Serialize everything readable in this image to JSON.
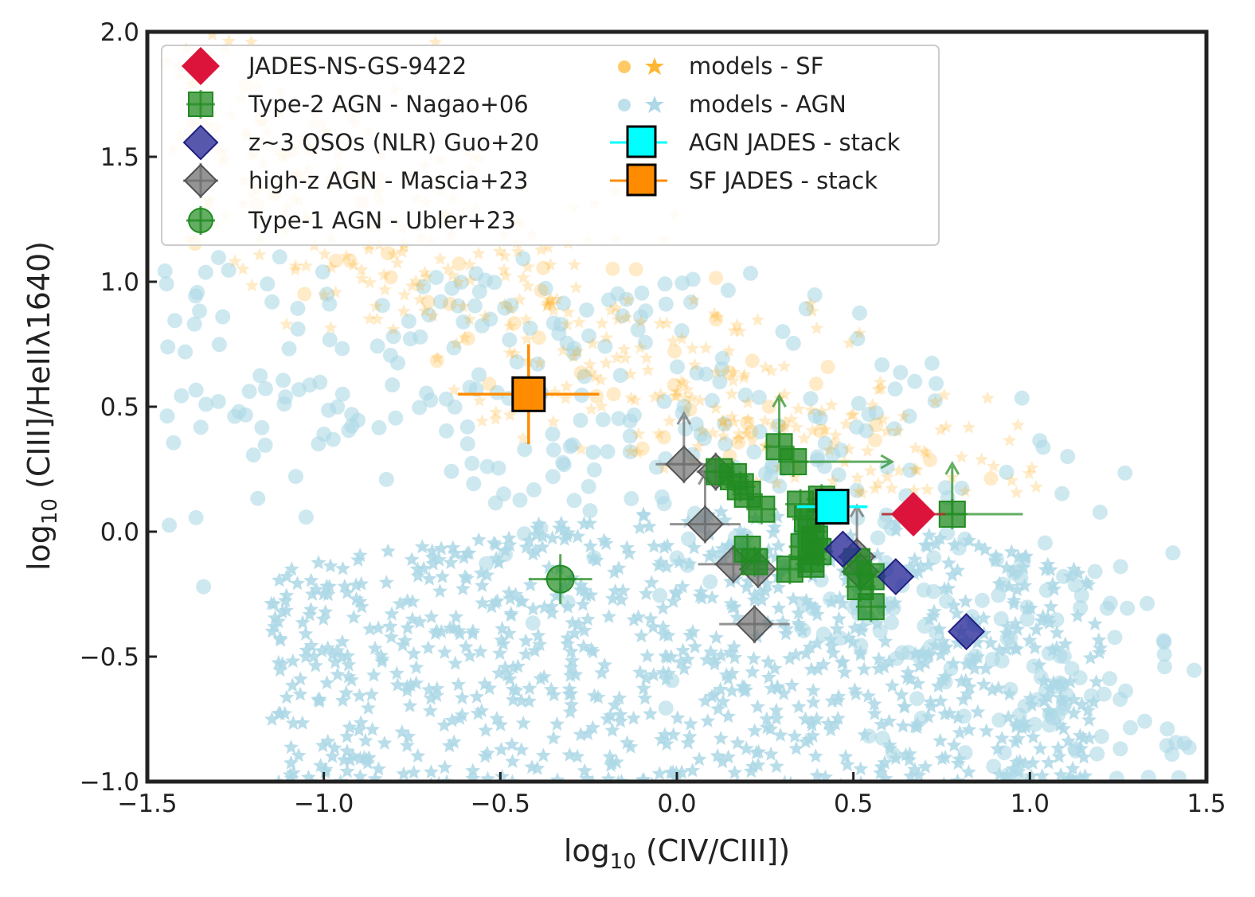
{
  "chart_data": {
    "type": "scatter",
    "xlabel_prefix": "log",
    "xlabel_sub": "10",
    "xlabel_rest": " (CIV/CIII])",
    "ylabel_prefix": "log",
    "ylabel_sub": "10",
    "ylabel_rest": " (CIII]/HeIIλ1640)",
    "xlim": [
      -1.5,
      1.5
    ],
    "ylim": [
      -1.0,
      2.0
    ],
    "xticks": [
      -1.5,
      -1.0,
      -0.5,
      0.0,
      0.5,
      1.0,
      1.5
    ],
    "xtick_labels": [
      "−1.5",
      "−1.0",
      "−0.5",
      "0.0",
      "0.5",
      "1.0",
      "1.5"
    ],
    "yticks": [
      -1.0,
      -0.5,
      0.0,
      0.5,
      1.0,
      1.5,
      2.0
    ],
    "ytick_labels": [
      "−1.0",
      "−0.5",
      "0.0",
      "0.5",
      "1.0",
      "1.5",
      "2.0"
    ],
    "legend_position": "top-left",
    "colors": {
      "red": "#dc143c",
      "green": "#228b22",
      "blue": "#2e2e9a",
      "gray": "#707070",
      "cyan": "#00ffff",
      "orange": "#ff8c00",
      "sf_models": "#ffa500",
      "agn_models": "#add8e6"
    },
    "legend": [
      {
        "label": "JADES-NS-GS-9422",
        "marker": "diamond",
        "color": "#dc143c"
      },
      {
        "label": "Type-2 AGN - Nagao+06",
        "marker": "square",
        "color": "#228b22"
      },
      {
        "label": "z~3 QSOs (NLR) Guo+20",
        "marker": "diamond",
        "color": "#2e2e9a"
      },
      {
        "label": "high-z AGN - Mascia+23",
        "marker": "diamond",
        "color": "#707070"
      },
      {
        "label": "Type-1 AGN - Ubler+23",
        "marker": "circle",
        "color": "#228b22"
      },
      {
        "label": "models - SF",
        "marker": "circle-star",
        "color": "#ffa500"
      },
      {
        "label": "models - AGN",
        "marker": "circle-star",
        "color": "#add8e6"
      },
      {
        "label": "AGN JADES - stack",
        "marker": "square-err",
        "color": "#00ffff"
      },
      {
        "label": "SF JADES - stack",
        "marker": "square-err",
        "color": "#ff8c00"
      }
    ],
    "series": [
      {
        "name": "JADES-NS-GS-9422",
        "points": [
          {
            "x": 0.67,
            "y": 0.07,
            "xerr": 0.09
          }
        ]
      },
      {
        "name": "Type-2 AGN - Nagao+06",
        "points": [
          {
            "x": 0.29,
            "y": 0.34,
            "uy": true
          },
          {
            "x": 0.33,
            "y": 0.28,
            "ux": true
          },
          {
            "x": 0.78,
            "y": 0.07,
            "uy": true,
            "xerr": 0.2
          },
          {
            "x": 0.12,
            "y": 0.24
          },
          {
            "x": 0.16,
            "y": 0.22
          },
          {
            "x": 0.18,
            "y": 0.18
          },
          {
            "x": 0.2,
            "y": 0.15
          },
          {
            "x": 0.24,
            "y": 0.09
          },
          {
            "x": 0.35,
            "y": 0.11
          },
          {
            "x": 0.37,
            "y": 0.05
          },
          {
            "x": 0.38,
            "y": 0.0
          },
          {
            "x": 0.39,
            "y": -0.03
          },
          {
            "x": 0.36,
            "y": -0.06
          },
          {
            "x": 0.4,
            "y": -0.08
          },
          {
            "x": 0.38,
            "y": -0.11
          },
          {
            "x": 0.41,
            "y": 0.13
          },
          {
            "x": 0.2,
            "y": -0.07
          },
          {
            "x": 0.22,
            "y": -0.12
          },
          {
            "x": 0.32,
            "y": -0.15
          },
          {
            "x": 0.38,
            "y": -0.13
          },
          {
            "x": 0.51,
            "y": -0.12
          },
          {
            "x": 0.55,
            "y": -0.18
          },
          {
            "x": 0.52,
            "y": -0.22
          },
          {
            "x": 0.55,
            "y": -0.3
          }
        ]
      },
      {
        "name": "z~3 QSOs (NLR) Guo+20",
        "points": [
          {
            "x": 0.47,
            "y": -0.07
          },
          {
            "x": 0.62,
            "y": -0.18
          },
          {
            "x": 0.82,
            "y": -0.4
          }
        ]
      },
      {
        "name": "high-z AGN - Mascia+23",
        "points": [
          {
            "x": 0.02,
            "y": 0.27,
            "uy": true,
            "xerr": 0.08
          },
          {
            "x": 0.11,
            "y": 0.24
          },
          {
            "x": 0.08,
            "y": 0.03,
            "uy": true,
            "xerr": 0.1
          },
          {
            "x": 0.16,
            "y": -0.13,
            "xerr": 0.1
          },
          {
            "x": 0.23,
            "y": -0.15
          },
          {
            "x": 0.22,
            "y": -0.37,
            "xerr": 0.1
          },
          {
            "x": 0.51,
            "y": -0.1,
            "uy": true
          },
          {
            "x": 0.52,
            "y": -0.16
          }
        ]
      },
      {
        "name": "Type-1 AGN - Ubler+23",
        "points": [
          {
            "x": -0.33,
            "y": -0.19,
            "xerr": 0.09,
            "yerr": 0.1
          }
        ]
      },
      {
        "name": "AGN JADES - stack",
        "points": [
          {
            "x": 0.44,
            "y": 0.1,
            "xerr": 0.1,
            "yerr": 0.06
          }
        ]
      },
      {
        "name": "SF JADES - stack",
        "points": [
          {
            "x": -0.42,
            "y": 0.55,
            "xerr": 0.2,
            "yerr": 0.2
          }
        ]
      }
    ]
  }
}
